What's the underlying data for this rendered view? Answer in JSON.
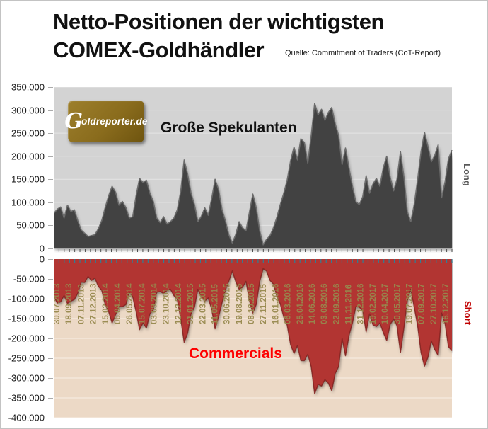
{
  "title": {
    "line1": "Netto-Positionen der wichtigsten",
    "line2": "COMEX-Goldhändler",
    "source": "Quelle: Commitment of Traders (CoT-Report)"
  },
  "logo": {
    "g_letter": "G",
    "rest": "oldreporter.de"
  },
  "labels": {
    "speculators": "Große Spekulanten",
    "commercials": "Commercials",
    "long": "Long",
    "short": "Short"
  },
  "colors": {
    "spec_area": "#424242",
    "spec_rim": "#6b6b6b",
    "spec_bg": "#d3d3d3",
    "spec_grid": "#e4e4e4",
    "comm_area": "#b23531",
    "comm_edge": "#7f211f",
    "comm_bg": "#ecd9c6",
    "comm_grid": "#f7efe5",
    "date_text": "#97894e",
    "teal_tick": "#2f7f95",
    "black_tick": "#4d4d4d",
    "axis_line": "#9a9a9a",
    "short_red": "#c00000",
    "long_gray": "#595959"
  },
  "y_axis_top_labels": [
    "350.000",
    "300.000",
    "250.000",
    "200.000",
    "150.000",
    "100.000",
    "50.000",
    "0"
  ],
  "y_axis_bottom_labels": [
    "0",
    "-50.000",
    "-100.000",
    "-150.000",
    "-200.000",
    "-250.000",
    "-300.000",
    "-350.000",
    "-400.000"
  ],
  "chart_data": {
    "type": "area",
    "title": "Netto-Positionen der wichtigsten COMEX-Goldhändler",
    "subtitle": "Quelle: Commitment of Traders (CoT-Report)",
    "x_labels": [
      "30.07.2013",
      "18.09.2013",
      "07.11.2013",
      "27.12.2013",
      "15.02.2014",
      "06.04.2014",
      "26.05.2014",
      "15.07.2014",
      "03.09.2014",
      "23.10.2014",
      "12.12.2014",
      "31.01.2015",
      "22.03.2015",
      "11.05.2015",
      "30.06.2015",
      "19.08.2015",
      "08.10.2015",
      "27.11.2015",
      "16.01.2016",
      "06.03.2016",
      "25.04.2016",
      "14.06.2016",
      "03.08.2016",
      "22.09.2016",
      "11.11.2016",
      "31.12.2016",
      "19.02.2017",
      "10.04.2017",
      "30.05.2017",
      "19.07.2017",
      "07.09.2017",
      "27.10.2017",
      "16.12.2017"
    ],
    "ylim_top": [
      0,
      350000
    ],
    "ylim_bottom": [
      -400000,
      0
    ],
    "grid_step": 50000,
    "legend_position": "none",
    "series": [
      {
        "name": "Große Spekulanten",
        "axis": "top",
        "values": [
          76000,
          85000,
          90000,
          66000,
          94000,
          80000,
          84000,
          60000,
          40000,
          33000,
          26000,
          28000,
          30000,
          43000,
          61000,
          89000,
          115000,
          135000,
          122000,
          94000,
          102000,
          89000,
          66000,
          69000,
          115000,
          152000,
          143000,
          148000,
          120000,
          102000,
          66000,
          56000,
          69000,
          53000,
          58000,
          66000,
          84000,
          125000,
          192000,
          161000,
          120000,
          95000,
          58000,
          70000,
          88000,
          72000,
          108000,
          150000,
          128000,
          85000,
          60000,
          30000,
          12000,
          30000,
          58000,
          45000,
          38000,
          78000,
          118000,
          88000,
          38000,
          8000,
          20000,
          28000,
          45000,
          68000,
          95000,
          120000,
          148000,
          190000,
          220000,
          192000,
          238000,
          230000,
          185000,
          245000,
          315000,
          290000,
          302000,
          278000,
          295000,
          306000,
          270000,
          245000,
          182000,
          218000,
          175000,
          135000,
          102000,
          95000,
          112000,
          158000,
          120000,
          140000,
          152000,
          135000,
          175000,
          200000,
          155000,
          125000,
          150000,
          210000,
          155000,
          80000,
          58000,
          95000,
          150000,
          210000,
          252000,
          222000,
          188000,
          202000,
          225000,
          110000,
          145000,
          195000,
          213000
        ]
      },
      {
        "name": "Commercials",
        "axis": "bottom",
        "values": [
          -94000,
          -111000,
          -108000,
          -92000,
          -112000,
          -106000,
          -102000,
          -86000,
          -58000,
          -59000,
          -44000,
          -54000,
          -48000,
          -69000,
          -79000,
          -115000,
          -133000,
          -161000,
          -140000,
          -120000,
          -120000,
          -115000,
          -84000,
          -95000,
          -133000,
          -178000,
          -161000,
          -174000,
          -138000,
          -128000,
          -84000,
          -82000,
          -87000,
          -79000,
          -76000,
          -92000,
          -102000,
          -151000,
          -210000,
          -187000,
          -138000,
          -121000,
          -76000,
          -96000,
          -106000,
          -98000,
          -126000,
          -176000,
          -146000,
          -111000,
          -78000,
          -56000,
          -30000,
          -56000,
          -76000,
          -71000,
          -56000,
          -104000,
          -136000,
          -114000,
          -56000,
          -24000,
          -30000,
          -54000,
          -63000,
          -94000,
          -113000,
          -146000,
          -166000,
          -216000,
          -238000,
          -218000,
          -256000,
          -256000,
          -240000,
          -271000,
          -340000,
          -316000,
          -320000,
          -304000,
          -313000,
          -332000,
          -288000,
          -271000,
          -200000,
          -244000,
          -193000,
          -161000,
          -120000,
          -121000,
          -130000,
          -184000,
          -138000,
          -166000,
          -170000,
          -161000,
          -185000,
          -205000,
          -165000,
          -151000,
          -168000,
          -236000,
          -173000,
          -106000,
          -76000,
          -121000,
          -168000,
          -236000,
          -270000,
          -248000,
          -206000,
          -228000,
          -243000,
          -136000,
          -163000,
          -221000,
          -231000
        ]
      }
    ]
  }
}
